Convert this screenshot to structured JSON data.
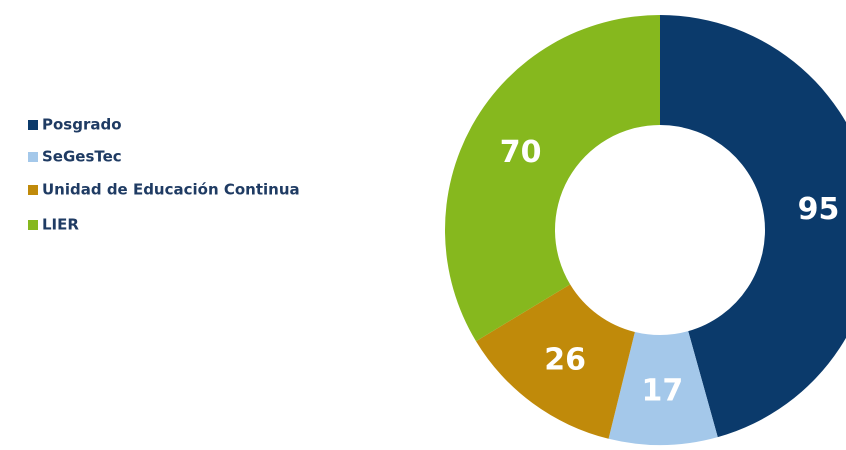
{
  "chart_data": {
    "type": "donut",
    "categories": [
      "Posgrado",
      "SeGesTec",
      "Unidad de Educación Continua",
      "LIER"
    ],
    "values": [
      95,
      17,
      26,
      70
    ],
    "colors": [
      "#0b3a6b",
      "#a4c8ea",
      "#c08a0a",
      "#86b81e"
    ],
    "legend": "left"
  }
}
